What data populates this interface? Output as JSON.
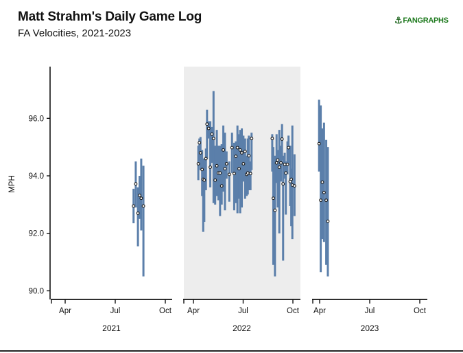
{
  "header": {
    "title": "Matt Strahm's Daily Game Log",
    "subtitle": "FA Velocities, 2021-2023",
    "logo_text": "FANGRAPHS"
  },
  "colors": {
    "bar": "#5b7faa",
    "point_fill": "#ffffff",
    "point_stroke": "#1a1a1a",
    "shaded_panel": "#ededed",
    "axis": "#111111"
  },
  "chart_data": {
    "type": "scatter",
    "ylabel": "MPH",
    "ylim": [
      89.7,
      97.8
    ],
    "yticks": [
      90.0,
      92.0,
      94.0,
      96.0
    ],
    "ytick_labels": [
      "90.0",
      "92.0",
      "94.0",
      "96.0"
    ],
    "xtick_labels": [
      "Apr",
      "Jul",
      "Oct"
    ],
    "shaded_panel": "2022",
    "panels": [
      {
        "label": "2021",
        "games": [
          {
            "date": "2021-08-04",
            "mean": 92.95,
            "min": 92.35,
            "max": 93.55
          },
          {
            "date": "2021-08-08",
            "mean": 93.72,
            "min": 92.9,
            "max": 94.5
          },
          {
            "date": "2021-08-12",
            "mean": 92.7,
            "min": 91.55,
            "max": 93.6
          },
          {
            "date": "2021-08-15",
            "mean": 93.32,
            "min": 92.5,
            "max": 94.0
          },
          {
            "date": "2021-08-18",
            "mean": 93.22,
            "min": 92.1,
            "max": 94.6
          },
          {
            "date": "2021-08-22",
            "mean": 92.95,
            "min": 90.5,
            "max": 94.35
          }
        ]
      },
      {
        "label": "2022",
        "games": [
          {
            "date": "2022-04-10",
            "mean": 94.42,
            "min": 93.85,
            "max": 95.05
          },
          {
            "date": "2022-04-12",
            "mean": 95.15,
            "min": 94.5,
            "max": 95.3
          },
          {
            "date": "2022-04-14",
            "mean": 94.8,
            "min": 94.2,
            "max": 95.35
          },
          {
            "date": "2022-04-17",
            "mean": 94.22,
            "min": 93.3,
            "max": 94.9
          },
          {
            "date": "2022-04-19",
            "mean": 93.88,
            "min": 92.05,
            "max": 94.6
          },
          {
            "date": "2022-04-21",
            "mean": 93.85,
            "min": 92.4,
            "max": 94.6
          },
          {
            "date": "2022-04-24",
            "mean": 94.6,
            "min": 93.5,
            "max": 94.95
          },
          {
            "date": "2022-04-26",
            "mean": 95.8,
            "min": 94.6,
            "max": 96.3
          },
          {
            "date": "2022-04-29",
            "mean": 95.65,
            "min": 95.3,
            "max": 95.9
          },
          {
            "date": "2022-05-02",
            "mean": 94.3,
            "min": 93.6,
            "max": 95.9
          },
          {
            "date": "2022-05-05",
            "mean": 95.45,
            "min": 94.45,
            "max": 95.7
          },
          {
            "date": "2022-05-08",
            "mean": 95.3,
            "min": 93.05,
            "max": 96.95
          },
          {
            "date": "2022-05-11",
            "mean": 93.85,
            "min": 93.0,
            "max": 95.05
          },
          {
            "date": "2022-05-14",
            "mean": 94.35,
            "min": 93.3,
            "max": 95.6
          },
          {
            "date": "2022-05-17",
            "mean": 94.1,
            "min": 93.15,
            "max": 95.05
          },
          {
            "date": "2022-05-20",
            "mean": 94.1,
            "min": 92.6,
            "max": 95.05
          },
          {
            "date": "2022-05-23",
            "mean": 93.65,
            "min": 93.0,
            "max": 95.1
          },
          {
            "date": "2022-05-26",
            "mean": 94.9,
            "min": 93.45,
            "max": 95.75
          },
          {
            "date": "2022-05-29",
            "mean": 94.25,
            "min": 92.8,
            "max": 95.5
          },
          {
            "date": "2022-06-01",
            "mean": 94.42,
            "min": 93.9,
            "max": 94.85
          },
          {
            "date": "2022-06-06",
            "mean": 94.05,
            "min": 93.1,
            "max": 94.5
          },
          {
            "date": "2022-06-11",
            "mean": 94.98,
            "min": 94.1,
            "max": 95.5
          },
          {
            "date": "2022-06-15",
            "mean": 94.08,
            "min": 92.8,
            "max": 95.15
          },
          {
            "date": "2022-06-18",
            "mean": 94.68,
            "min": 93.05,
            "max": 95.2
          },
          {
            "date": "2022-06-21",
            "mean": 94.98,
            "min": 92.7,
            "max": 95.75
          },
          {
            "date": "2022-06-24",
            "mean": 94.25,
            "min": 93.2,
            "max": 95.45
          },
          {
            "date": "2022-06-26",
            "mean": 94.9,
            "min": 92.7,
            "max": 95.6
          },
          {
            "date": "2022-06-29",
            "mean": 94.8,
            "min": 92.9,
            "max": 95.65
          },
          {
            "date": "2022-07-02",
            "mean": 94.42,
            "min": 93.8,
            "max": 95.4
          },
          {
            "date": "2022-07-05",
            "mean": 94.85,
            "min": 93.2,
            "max": 95.3
          },
          {
            "date": "2022-07-08",
            "mean": 94.05,
            "min": 93.3,
            "max": 94.7
          },
          {
            "date": "2022-07-10",
            "mean": 94.1,
            "min": 93.35,
            "max": 95.3
          },
          {
            "date": "2022-07-12",
            "mean": 94.7,
            "min": 93.5,
            "max": 95.4
          },
          {
            "date": "2022-07-15",
            "mean": 94.08,
            "min": 93.5,
            "max": 94.5
          },
          {
            "date": "2022-07-17",
            "mean": 95.3,
            "min": 94.2,
            "max": 95.5
          },
          {
            "date": "2022-08-24",
            "mean": 95.3,
            "min": 94.15,
            "max": 95.45
          },
          {
            "date": "2022-08-26",
            "mean": 93.22,
            "min": 90.9,
            "max": 95.0
          },
          {
            "date": "2022-08-29",
            "mean": 92.8,
            "min": 90.5,
            "max": 94.7
          },
          {
            "date": "2022-09-01",
            "mean": 94.45,
            "min": 93.75,
            "max": 95.45
          },
          {
            "date": "2022-09-03",
            "mean": 94.55,
            "min": 92.9,
            "max": 94.9
          },
          {
            "date": "2022-09-06",
            "mean": 94.3,
            "min": 92.0,
            "max": 95.6
          },
          {
            "date": "2022-09-09",
            "mean": 94.45,
            "min": 93.8,
            "max": 95.05
          },
          {
            "date": "2022-09-11",
            "mean": 95.28,
            "min": 94.55,
            "max": 95.8
          },
          {
            "date": "2022-09-13",
            "mean": 93.72,
            "min": 91.05,
            "max": 94.7
          },
          {
            "date": "2022-09-16",
            "mean": 94.4,
            "min": 93.9,
            "max": 94.8
          },
          {
            "date": "2022-09-18",
            "mean": 94.1,
            "min": 92.65,
            "max": 94.5
          },
          {
            "date": "2022-09-21",
            "mean": 94.4,
            "min": 94.05,
            "max": 95.2
          },
          {
            "date": "2022-09-23",
            "mean": 94.98,
            "min": 94.45,
            "max": 95.4
          },
          {
            "date": "2022-09-26",
            "mean": 93.8,
            "min": 92.95,
            "max": 95.05
          },
          {
            "date": "2022-09-28",
            "mean": 93.88,
            "min": 92.25,
            "max": 94.25
          },
          {
            "date": "2022-09-30",
            "mean": 93.68,
            "min": 91.8,
            "max": 95.75
          },
          {
            "date": "2022-10-04",
            "mean": 93.65,
            "min": 92.6,
            "max": 94.75
          }
        ]
      },
      {
        "label": "2023",
        "games": [
          {
            "date": "2023-03-31",
            "mean": 95.12,
            "min": 94.15,
            "max": 96.65
          },
          {
            "date": "2023-04-03",
            "mean": 93.15,
            "min": 90.65,
            "max": 96.45
          },
          {
            "date": "2023-04-06",
            "mean": 93.78,
            "min": 91.8,
            "max": 95.65
          },
          {
            "date": "2023-04-09",
            "mean": 93.42,
            "min": 91.7,
            "max": 95.85
          },
          {
            "date": "2023-04-13",
            "mean": 93.15,
            "min": 90.9,
            "max": 95.25
          },
          {
            "date": "2023-04-16",
            "mean": 92.42,
            "min": 90.5,
            "max": 95.0
          }
        ]
      }
    ]
  }
}
